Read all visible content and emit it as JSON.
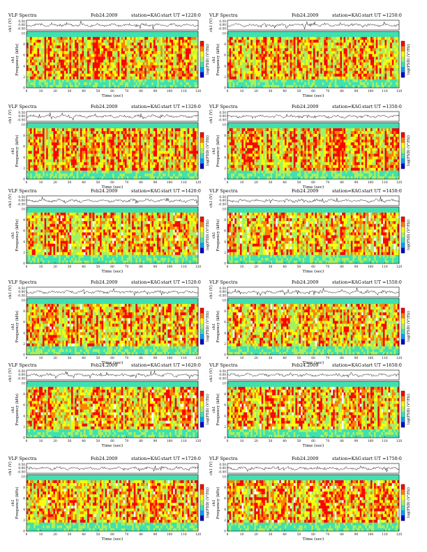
{
  "header": {
    "title": "VLF Spectra",
    "date": "Feb24.2009",
    "station": "station=KAG",
    "start_prefix": "start  UT  ="
  },
  "labels": {
    "ch1_axis": "ch1 (V)",
    "freq_axis": "Frequency  (kHz)",
    "freq_axis_prefix": "ch1",
    "time_axis": "Time  (sec)",
    "colorbar": "log(PSD) (V²/Hz)"
  },
  "panels": [
    {
      "start_ut": "1220:0"
    },
    {
      "start_ut": "1250:0"
    },
    {
      "start_ut": "1320:0"
    },
    {
      "start_ut": "1350:0"
    },
    {
      "start_ut": "1420:0"
    },
    {
      "start_ut": "1450:0"
    },
    {
      "start_ut": "1520:0"
    },
    {
      "start_ut": "1550:0"
    },
    {
      "start_ut": "1620:0"
    },
    {
      "start_ut": "1650:0"
    },
    {
      "start_ut": "1720:0"
    },
    {
      "start_ut": "1750:0"
    }
  ],
  "chart_data": {
    "type": "heatmap",
    "x_ticks": [
      "0",
      "10",
      "20",
      "30",
      "40",
      "50",
      "60",
      "70",
      "80",
      "90",
      "100",
      "110",
      "120"
    ],
    "y_ticks": [
      "0",
      "2",
      "4",
      "6",
      "8",
      "10"
    ],
    "ch1_ticks": [
      "0.50",
      "0.00",
      "-0.50"
    ],
    "xlim": [
      0,
      120
    ],
    "ylim": [
      0,
      10
    ],
    "ch1_ylim": [
      -0.5,
      0.5
    ],
    "colorscale": [
      "#0000cc",
      "#00a0ff",
      "#40e0b0",
      "#a8f060",
      "#ffff00",
      "#ff8000",
      "#ff0000"
    ],
    "colors": {
      "white_gap": "#ffffff",
      "trace": "#000000"
    }
  }
}
